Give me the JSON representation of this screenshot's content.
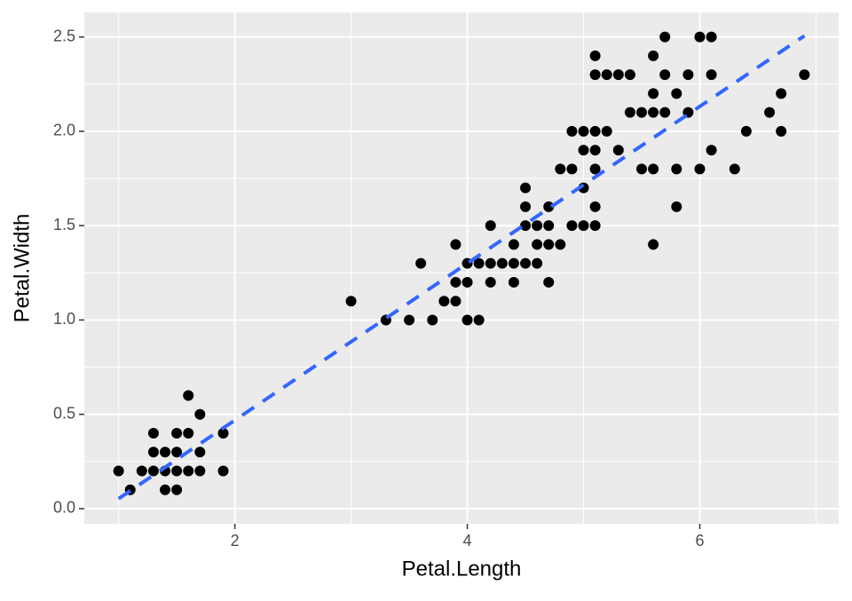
{
  "chart_data": {
    "type": "scatter",
    "x_label": "Petal.Length",
    "y_label": "Petal.Width",
    "series": [
      {
        "color": "#000000",
        "x": [
          1.0,
          1.1,
          1.2,
          1.3,
          1.3,
          1.3,
          1.4,
          1.4,
          1.4,
          1.5,
          1.5,
          1.5,
          1.5,
          1.6,
          1.6,
          1.6,
          1.7,
          1.7,
          1.7,
          1.9,
          1.9,
          3.0,
          3.3,
          3.5,
          3.6,
          3.7,
          3.8,
          3.9,
          3.9,
          3.9,
          4.0,
          4.0,
          4.0,
          4.1,
          4.1,
          4.2,
          4.2,
          4.2,
          4.3,
          4.4,
          4.4,
          4.4,
          4.5,
          4.5,
          4.5,
          4.5,
          4.6,
          4.6,
          4.6,
          4.7,
          4.7,
          4.7,
          4.7,
          4.8,
          4.8,
          4.9,
          4.9,
          4.9,
          5.0,
          5.0,
          5.0,
          5.0,
          5.1,
          5.1,
          5.1,
          5.1,
          5.1,
          5.1,
          5.1,
          5.2,
          5.2,
          5.3,
          5.3,
          5.4,
          5.4,
          5.5,
          5.5,
          5.6,
          5.6,
          5.6,
          5.6,
          5.6,
          5.7,
          5.7,
          5.7,
          5.8,
          5.8,
          5.8,
          5.9,
          5.9,
          6.0,
          6.0,
          6.1,
          6.1,
          6.1,
          6.3,
          6.4,
          6.6,
          6.7,
          6.7,
          6.9
        ],
        "values": [
          0.2,
          0.1,
          0.2,
          0.2,
          0.3,
          0.4,
          0.1,
          0.2,
          0.3,
          0.1,
          0.2,
          0.3,
          0.4,
          0.2,
          0.4,
          0.6,
          0.2,
          0.3,
          0.5,
          0.2,
          0.4,
          1.1,
          1.0,
          1.0,
          1.3,
          1.0,
          1.1,
          1.1,
          1.2,
          1.4,
          1.0,
          1.2,
          1.3,
          1.0,
          1.3,
          1.2,
          1.3,
          1.5,
          1.3,
          1.2,
          1.3,
          1.4,
          1.3,
          1.5,
          1.6,
          1.7,
          1.3,
          1.4,
          1.5,
          1.2,
          1.4,
          1.5,
          1.6,
          1.4,
          1.8,
          1.5,
          1.8,
          2.0,
          1.5,
          1.7,
          1.9,
          2.0,
          1.5,
          1.6,
          1.8,
          1.9,
          2.0,
          2.3,
          2.4,
          2.0,
          2.3,
          1.9,
          2.3,
          2.1,
          2.3,
          1.8,
          2.1,
          1.4,
          1.8,
          2.1,
          2.2,
          2.4,
          2.1,
          2.3,
          2.5,
          1.6,
          1.8,
          2.2,
          2.1,
          2.3,
          1.8,
          2.5,
          1.9,
          2.3,
          2.5,
          1.8,
          2.0,
          2.1,
          2.0,
          2.2,
          2.3
        ]
      }
    ],
    "fit_line": {
      "color": "#3366FF",
      "dashed": true,
      "x": [
        1.0,
        6.9
      ],
      "values": [
        0.053,
        2.506
      ]
    },
    "xlim": [
      0.705,
      7.195
    ],
    "ylim": [
      -0.08,
      2.63
    ],
    "xticks": [
      2,
      4,
      6
    ],
    "yticks": [
      {
        "value": 0,
        "label": "0.0"
      },
      0.5,
      {
        "value": 1,
        "label": "1.0"
      },
      1.5,
      {
        "value": 2,
        "label": "2.0"
      },
      2.5
    ],
    "minor_xticks": [
      1,
      3,
      5,
      7
    ],
    "minor_yticks": [
      0.25,
      0.75,
      1.25,
      1.75,
      2.25
    ],
    "grid": true
  }
}
